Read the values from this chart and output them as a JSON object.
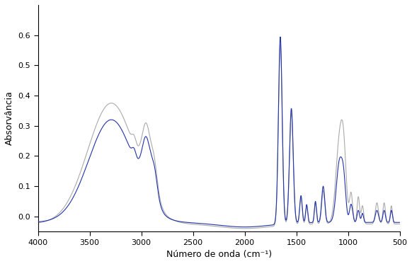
{
  "xlabel": "Número de onda (cm⁻¹)",
  "ylabel": "Absorvância",
  "xlim": [
    4000,
    500
  ],
  "ylim": [
    -0.05,
    0.7
  ],
  "yticks": [
    0.0,
    0.1,
    0.2,
    0.3,
    0.4,
    0.5,
    0.6
  ],
  "xticks": [
    4000,
    3500,
    3000,
    2500,
    2000,
    1500,
    1000,
    500
  ],
  "color_blue": "#2233aa",
  "color_gray": "#aaaaaa",
  "linewidth": 0.8,
  "background_color": "#ffffff"
}
